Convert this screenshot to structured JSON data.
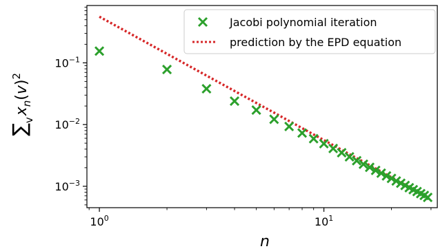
{
  "chart_data": {
    "type": "scatter",
    "x_scale": "log",
    "y_scale": "log",
    "xlim": [
      0.88,
      32
    ],
    "ylim": [
      0.00045,
      0.85
    ],
    "x_ticks": [
      {
        "value": 1,
        "base": "10",
        "exp": "0"
      },
      {
        "value": 10,
        "base": "10",
        "exp": "1"
      }
    ],
    "y_ticks": [
      {
        "value": 0.1,
        "base": "10",
        "exp": "−1"
      },
      {
        "value": 0.01,
        "base": "10",
        "exp": "−2"
      },
      {
        "value": 0.001,
        "base": "10",
        "exp": "−3"
      }
    ],
    "xlabel": "n",
    "ylabel": "∑v xn(v)2",
    "grid": false,
    "legend_position": "top-right",
    "series": [
      {
        "name": "Jacobi polynomial iteration",
        "marker": "x",
        "color": "#2ca02c",
        "x": [
          1,
          2,
          3,
          4,
          5,
          6,
          7,
          8,
          9,
          10,
          11,
          12,
          13,
          14,
          15,
          16,
          17,
          18,
          19,
          20,
          21,
          22,
          23,
          24,
          25,
          26,
          27,
          28,
          29
        ],
        "y": [
          0.155,
          0.078,
          0.038,
          0.024,
          0.0172,
          0.0122,
          0.0093,
          0.0073,
          0.0059,
          0.0049,
          0.0041,
          0.0035,
          0.003,
          0.0026,
          0.00228,
          0.00203,
          0.00181,
          0.00163,
          0.00147,
          0.00134,
          0.00122,
          0.00112,
          0.00103,
          0.00095,
          0.00088,
          0.00082,
          0.00076,
          0.00071,
          0.00066
        ]
      },
      {
        "name": "prediction by the EPD equation",
        "style": "dotted",
        "color": "#d62728",
        "x": [
          1,
          2,
          3,
          4,
          5,
          6,
          7,
          8,
          9,
          10,
          11,
          12,
          13,
          14,
          15,
          16,
          17,
          18,
          19,
          20,
          21,
          22,
          23,
          24,
          25,
          26,
          27,
          28,
          29
        ],
        "y": [
          0.56,
          0.14,
          0.0622,
          0.035,
          0.0224,
          0.0156,
          0.01143,
          0.00875,
          0.00691,
          0.0056,
          0.00463,
          0.00389,
          0.00331,
          0.00286,
          0.00249,
          0.00219,
          0.00194,
          0.00173,
          0.00155,
          0.0014,
          0.00127,
          0.00116,
          0.00106,
          0.00097,
          0.0009,
          0.00083,
          0.00077,
          0.00071,
          0.00067
        ]
      }
    ]
  }
}
